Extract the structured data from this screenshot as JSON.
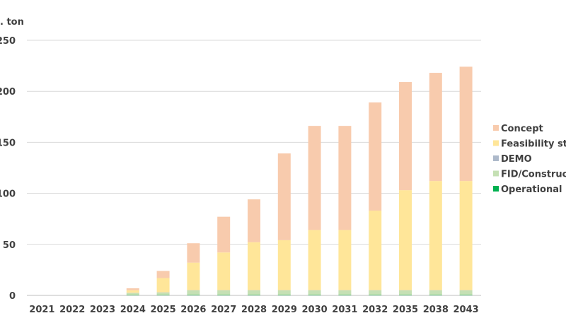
{
  "colors": {
    "Concept": "#f8cbad",
    "Feasibility study": "#ffe699",
    "DEMO": "#adb9ca",
    "FID/Construction": "#c5e0b4",
    "Operational": "#00b050",
    "grid": "#d9d9d9",
    "axis": "#bfbfbf",
    "text": "#404040"
  },
  "chart_data": {
    "type": "bar",
    "stacked": true,
    "ylabel": ". ton",
    "ylim": [
      0,
      250
    ],
    "yticks": [
      "0",
      "50",
      "100",
      "150",
      "200",
      "250"
    ],
    "categories": [
      "2021",
      "2022",
      "2023",
      "2024",
      "2025",
      "2026",
      "2027",
      "2028",
      "2029",
      "2030",
      "2031",
      "2032",
      "2035",
      "2038",
      "2043"
    ],
    "series": [
      {
        "name": "Operational",
        "values": [
          0,
          0,
          0,
          0.3,
          0.3,
          0.4,
          0.4,
          0.4,
          0.4,
          0.4,
          0.4,
          0.4,
          0.4,
          0.4,
          0.4
        ]
      },
      {
        "name": "FID/Construction",
        "values": [
          0,
          0,
          0,
          2,
          2.5,
          4.5,
          4.5,
          4.5,
          4.5,
          4.5,
          4.5,
          4.5,
          4.5,
          4.5,
          4.5
        ]
      },
      {
        "name": "DEMO",
        "values": [
          0,
          0,
          0,
          0.2,
          0.2,
          0.2,
          0.2,
          0.2,
          0.2,
          0.2,
          0.2,
          0.2,
          0.2,
          0.2,
          0.2
        ]
      },
      {
        "name": "Feasibility study",
        "values": [
          0,
          0,
          0,
          2.5,
          14,
          27,
          37,
          47,
          49,
          59,
          59,
          78,
          98,
          107,
          107
        ]
      },
      {
        "name": "Concept",
        "values": [
          0,
          0,
          0,
          2,
          7,
          19,
          35,
          42,
          85,
          102,
          102,
          106,
          106,
          106,
          112
        ]
      }
    ],
    "legend": {
      "position": "right",
      "entries": [
        "Concept",
        "Feasibility study",
        "DEMO",
        "FID/Construction",
        "Operational"
      ]
    },
    "grid": true
  }
}
